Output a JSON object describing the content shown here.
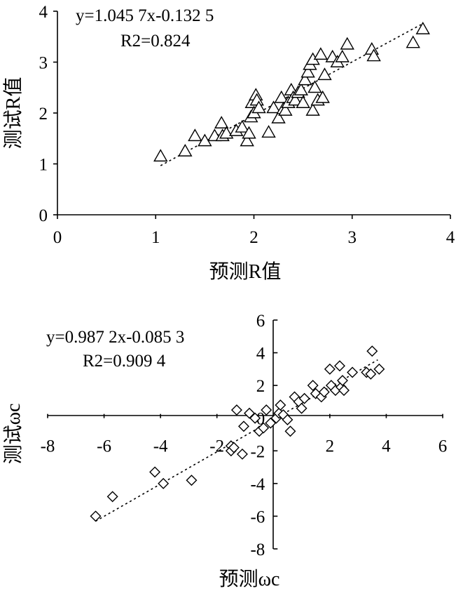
{
  "chart_data": [
    {
      "type": "scatter",
      "xlabel": "预测R值",
      "ylabel": "测试R值",
      "xlim": [
        0,
        4
      ],
      "ylim": [
        0,
        4
      ],
      "xticks": [
        0,
        1,
        2,
        3,
        4
      ],
      "yticks": [
        0,
        1,
        2,
        3,
        4
      ],
      "marker": "triangle",
      "annotations": {
        "equation": "y=1.045 7x-0.132 5",
        "r2": "R2=0.824"
      },
      "fit": {
        "slope": 1.0457,
        "intercept": -0.1325,
        "x_range": [
          1.05,
          3.7
        ]
      },
      "x": [
        1.05,
        1.3,
        1.4,
        1.5,
        1.6,
        1.68,
        1.67,
        1.72,
        1.82,
        1.88,
        1.93,
        1.95,
        1.97,
        1.98,
        2.0,
        2.02,
        2.03,
        2.05,
        2.15,
        2.2,
        2.25,
        2.28,
        2.3,
        2.32,
        2.35,
        2.38,
        2.4,
        2.42,
        2.45,
        2.48,
        2.5,
        2.52,
        2.55,
        2.57,
        2.6,
        2.6,
        2.62,
        2.65,
        2.68,
        2.7,
        2.72,
        2.8,
        2.85,
        2.9,
        2.95,
        3.2,
        3.22,
        3.62,
        3.72
      ],
      "y": [
        1.15,
        1.25,
        1.55,
        1.45,
        1.55,
        1.55,
        1.8,
        1.6,
        1.65,
        1.72,
        1.45,
        1.6,
        1.92,
        2.2,
        2.0,
        2.35,
        2.25,
        2.1,
        1.62,
        2.1,
        1.9,
        2.3,
        2.08,
        2.05,
        2.2,
        2.45,
        2.3,
        2.25,
        2.4,
        2.45,
        2.2,
        2.65,
        2.8,
        2.95,
        3.05,
        2.05,
        2.5,
        2.25,
        3.15,
        2.3,
        2.75,
        3.1,
        3.0,
        3.1,
        3.35,
        3.25,
        3.12,
        3.38,
        3.65
      ]
    },
    {
      "type": "scatter",
      "xlabel": "预测ωc",
      "ylabel": "测试ωc",
      "xlim": [
        -8,
        6
      ],
      "ylim": [
        -8,
        6
      ],
      "xticks": [
        -8,
        -6,
        -4,
        -2,
        0,
        2,
        4,
        6
      ],
      "yticks": [
        -8,
        -6,
        -4,
        -2,
        0,
        2,
        4,
        6
      ],
      "marker": "diamond",
      "annotations": {
        "equation": "y=0.987 2x-0.085 3",
        "r2": "R2=0.909 4"
      },
      "fit": {
        "slope": 0.9872,
        "intercept": -0.0853,
        "x_range": [
          -6.3,
          3.7
        ]
      },
      "x": [
        -6.3,
        -5.7,
        -4.2,
        -3.9,
        -2.9,
        -1.5,
        -1.5,
        -1.4,
        -1.3,
        -1.1,
        -1.05,
        -0.85,
        -0.65,
        -0.5,
        -0.35,
        -0.25,
        -0.1,
        0.1,
        0.2,
        0.25,
        0.35,
        0.5,
        0.6,
        0.75,
        0.9,
        1.0,
        1.1,
        1.4,
        1.5,
        1.7,
        1.8,
        2.0,
        2.05,
        2.2,
        2.35,
        2.4,
        2.45,
        2.5,
        2.8,
        3.3,
        3.45,
        3.5,
        3.75
      ],
      "y": [
        -6.0,
        -4.8,
        -3.3,
        -4.0,
        -3.8,
        -1.7,
        -2.0,
        -1.8,
        0.5,
        -2.2,
        -0.5,
        0.3,
        0.0,
        -0.8,
        -0.6,
        0.5,
        -0.3,
        0.0,
        0.3,
        0.8,
        0.2,
        -0.1,
        -0.8,
        1.3,
        1.0,
        0.6,
        1.2,
        2.0,
        1.5,
        1.3,
        1.6,
        3.0,
        2.0,
        1.7,
        3.2,
        1.9,
        2.3,
        1.7,
        2.8,
        2.8,
        2.7,
        4.1,
        3.0
      ]
    }
  ]
}
